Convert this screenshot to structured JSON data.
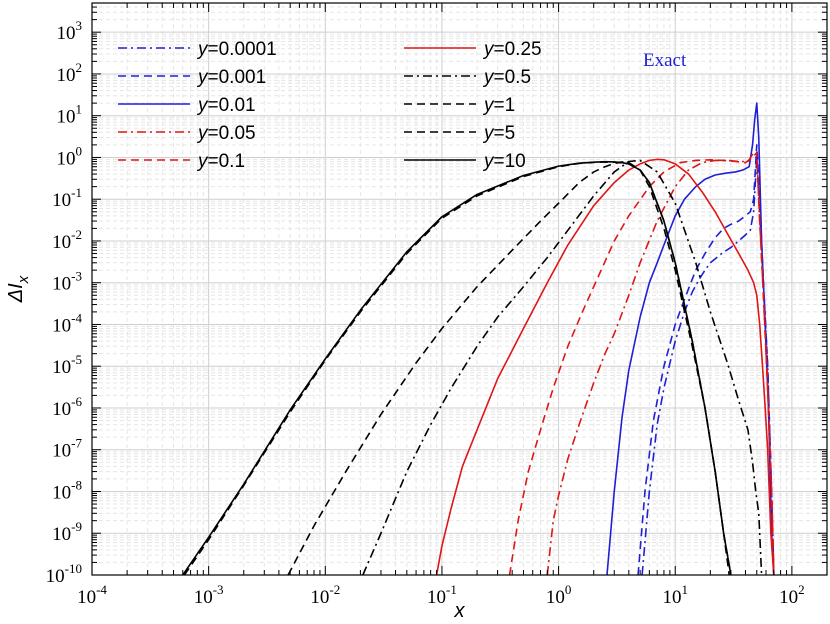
{
  "chart_data": {
    "type": "line",
    "xlabel": "x",
    "ylabel": "ΔI_x",
    "xscale": "log",
    "yscale": "log",
    "xlim": [
      0.0001,
      200
    ],
    "ylim": [
      1e-10,
      5000
    ],
    "grid": true,
    "legend": "top-left, two columns",
    "x_tick_labels": [
      "10^-4",
      "10^-3",
      "10^-2",
      "10^-1",
      "10^0",
      "10^1",
      "10^2"
    ],
    "y_tick_labels": [
      "10^-10",
      "10^-9",
      "10^-8",
      "10^-7",
      "10^-6",
      "10^-5",
      "10^-4",
      "10^-3",
      "10^-2",
      "10^-1",
      "10^0",
      "10^1",
      "10^2",
      "10^3"
    ],
    "annotation": {
      "text": "Exact",
      "color": "#1f1fd6"
    },
    "series": [
      {
        "name": "y=0.0001",
        "color": "#1f1fd6",
        "dash": "dashdot",
        "x": [
          5.2,
          6,
          7,
          8,
          10,
          12,
          14,
          16,
          18,
          20,
          25,
          30,
          35,
          40,
          44,
          47,
          50,
          53,
          57,
          62,
          67,
          70
        ],
        "y": [
          1e-10,
          1e-08,
          4e-07,
          3e-06,
          4e-05,
          0.0002,
          0.0006,
          0.0012,
          0.002,
          0.003,
          0.005,
          0.007,
          0.01,
          0.014,
          0.018,
          0.05,
          1,
          0.05,
          0.001,
          1e-05,
          1e-08,
          1e-10
        ]
      },
      {
        "name": "y=0.001",
        "color": "#1f1fd6",
        "dash": "dash",
        "x": [
          4.8,
          5.5,
          6.5,
          8,
          10,
          12,
          15,
          18,
          22,
          26,
          30,
          35,
          40,
          44,
          47,
          50,
          53,
          57,
          62,
          67,
          70
        ],
        "y": [
          1e-10,
          1e-08,
          5e-07,
          1e-05,
          0.0001,
          0.0004,
          0.002,
          0.005,
          0.012,
          0.02,
          0.025,
          0.03,
          0.04,
          0.05,
          0.1,
          2,
          0.1,
          0.001,
          1e-05,
          1e-08,
          1e-10
        ]
      },
      {
        "name": "y=0.01",
        "color": "#1f1fd6",
        "dash": "solid",
        "x": [
          2.6,
          3,
          3.5,
          4,
          5,
          6,
          7,
          8,
          10,
          12,
          15,
          18,
          22,
          27,
          33,
          38,
          43,
          46,
          48,
          50,
          52,
          55,
          59,
          63,
          67,
          70
        ],
        "y": [
          1e-10,
          1e-08,
          6e-07,
          8e-06,
          0.00015,
          0.001,
          0.003,
          0.008,
          0.04,
          0.1,
          0.2,
          0.3,
          0.38,
          0.42,
          0.45,
          0.5,
          0.6,
          2,
          8,
          20,
          3,
          0.01,
          0.0001,
          1e-06,
          1e-09,
          1e-10
        ]
      },
      {
        "name": "y=0.05",
        "color": "#e01515",
        "dash": "dashdot",
        "x": [
          0.8,
          0.9,
          1,
          1.2,
          1.5,
          2,
          2.5,
          3,
          4,
          5,
          7,
          10,
          13,
          17,
          22,
          28,
          35,
          42,
          47,
          50,
          53,
          57,
          62,
          67,
          70
        ],
        "y": [
          1e-10,
          2e-09,
          8e-09,
          6e-08,
          4e-07,
          4e-06,
          2e-05,
          6e-05,
          0.0005,
          0.003,
          0.03,
          0.2,
          0.5,
          0.75,
          0.85,
          0.85,
          0.8,
          0.8,
          1.3,
          1.2,
          0.03,
          0.0005,
          3e-06,
          1e-08,
          1e-10
        ]
      },
      {
        "name": "y=0.1",
        "color": "#e01515",
        "dash": "dash",
        "x": [
          0.38,
          0.45,
          0.55,
          0.7,
          0.9,
          1.2,
          1.6,
          2,
          3,
          4,
          6,
          8,
          11,
          15,
          20,
          26,
          33,
          40,
          46,
          50,
          53,
          57,
          62,
          67,
          70
        ],
        "y": [
          1e-10,
          2e-09,
          3e-08,
          3e-07,
          3e-06,
          3e-05,
          0.0002,
          0.0008,
          0.01,
          0.04,
          0.2,
          0.45,
          0.75,
          0.85,
          0.88,
          0.85,
          0.8,
          0.75,
          1.0,
          1.3,
          0.03,
          0.0005,
          3e-06,
          1e-08,
          1e-10
        ]
      },
      {
        "name": "y=0.25",
        "color": "#e01515",
        "dash": "solid",
        "x": [
          0.09,
          0.1,
          0.12,
          0.15,
          0.2,
          0.3,
          0.5,
          0.8,
          1.2,
          2,
          3,
          4,
          5,
          6,
          7,
          8,
          10,
          13,
          17,
          22,
          28,
          35,
          42,
          47,
          50,
          53,
          56,
          59,
          62,
          66,
          70
        ],
        "y": [
          1e-10,
          5e-10,
          4e-09,
          4e-08,
          3e-07,
          5e-06,
          8e-05,
          0.001,
          0.008,
          0.07,
          0.25,
          0.5,
          0.7,
          0.85,
          0.9,
          0.88,
          0.7,
          0.4,
          0.15,
          0.05,
          0.015,
          0.005,
          0.002,
          0.001,
          0.0005,
          0.0001,
          1e-05,
          1e-06,
          1e-07,
          1e-09,
          1e-10
        ]
      },
      {
        "name": "y=0.5",
        "color": "#000000",
        "dash": "dashdot",
        "x": [
          0.021,
          0.03,
          0.05,
          0.08,
          0.12,
          0.2,
          0.3,
          0.5,
          0.8,
          1.2,
          2,
          3,
          4,
          5,
          7,
          10,
          15,
          20,
          28,
          35,
          42,
          46,
          49,
          52,
          55
        ],
        "y": [
          1e-10,
          1e-09,
          3e-08,
          4e-07,
          3e-06,
          3e-05,
          0.00015,
          0.0008,
          0.004,
          0.018,
          0.12,
          0.45,
          0.8,
          0.85,
          0.45,
          0.08,
          0.003,
          0.0002,
          1.2e-05,
          1.5e-06,
          3e-07,
          5e-08,
          1e-08,
          3e-09,
          1e-10
        ]
      },
      {
        "name": "y=1",
        "color": "#000000",
        "dash": "dash",
        "x": [
          0.0048,
          0.008,
          0.015,
          0.03,
          0.06,
          0.1,
          0.2,
          0.4,
          0.7,
          1,
          1.5,
          2,
          2.5,
          3,
          3.5,
          4,
          5,
          6,
          8,
          10,
          14,
          18,
          22,
          26,
          30
        ],
        "y": [
          1e-10,
          1.5e-09,
          3e-08,
          7e-07,
          1.2e-05,
          8e-05,
          0.0008,
          0.006,
          0.03,
          0.08,
          0.25,
          0.45,
          0.6,
          0.72,
          0.78,
          0.75,
          0.5,
          0.2,
          0.02,
          0.002,
          3e-05,
          1e-06,
          3e-08,
          1e-09,
          1e-10
        ]
      },
      {
        "name": "y=5",
        "color": "#000000",
        "dash": "dash",
        "x": [
          0.00062,
          0.001,
          0.002,
          0.005,
          0.01,
          0.02,
          0.05,
          0.1,
          0.2,
          0.5,
          1,
          1.5,
          2,
          2.5,
          3,
          3.5,
          4,
          5,
          6,
          8,
          10,
          14,
          18,
          22,
          26,
          29
        ],
        "y": [
          1e-10,
          7e-10,
          1.4e-08,
          8e-07,
          1.4e-05,
          0.0002,
          0.005,
          0.035,
          0.12,
          0.35,
          0.6,
          0.72,
          0.76,
          0.78,
          0.77,
          0.74,
          0.7,
          0.5,
          0.25,
          0.03,
          0.003,
          4e-05,
          1e-06,
          3e-08,
          1e-09,
          1e-10
        ]
      },
      {
        "name": "y=10",
        "color": "#000000",
        "dash": "solid",
        "x": [
          0.0006,
          0.001,
          0.002,
          0.005,
          0.01,
          0.02,
          0.05,
          0.1,
          0.2,
          0.5,
          1,
          1.5,
          2,
          2.5,
          3,
          3.5,
          4,
          5,
          6,
          8,
          10,
          14,
          18,
          22,
          26,
          30
        ],
        "y": [
          1e-10,
          8e-10,
          1.5e-08,
          9e-07,
          1.5e-05,
          0.00022,
          0.0055,
          0.038,
          0.13,
          0.37,
          0.62,
          0.73,
          0.77,
          0.79,
          0.78,
          0.75,
          0.7,
          0.5,
          0.25,
          0.03,
          0.003,
          4e-05,
          1e-06,
          3e-08,
          1e-09,
          1e-10
        ]
      }
    ]
  }
}
